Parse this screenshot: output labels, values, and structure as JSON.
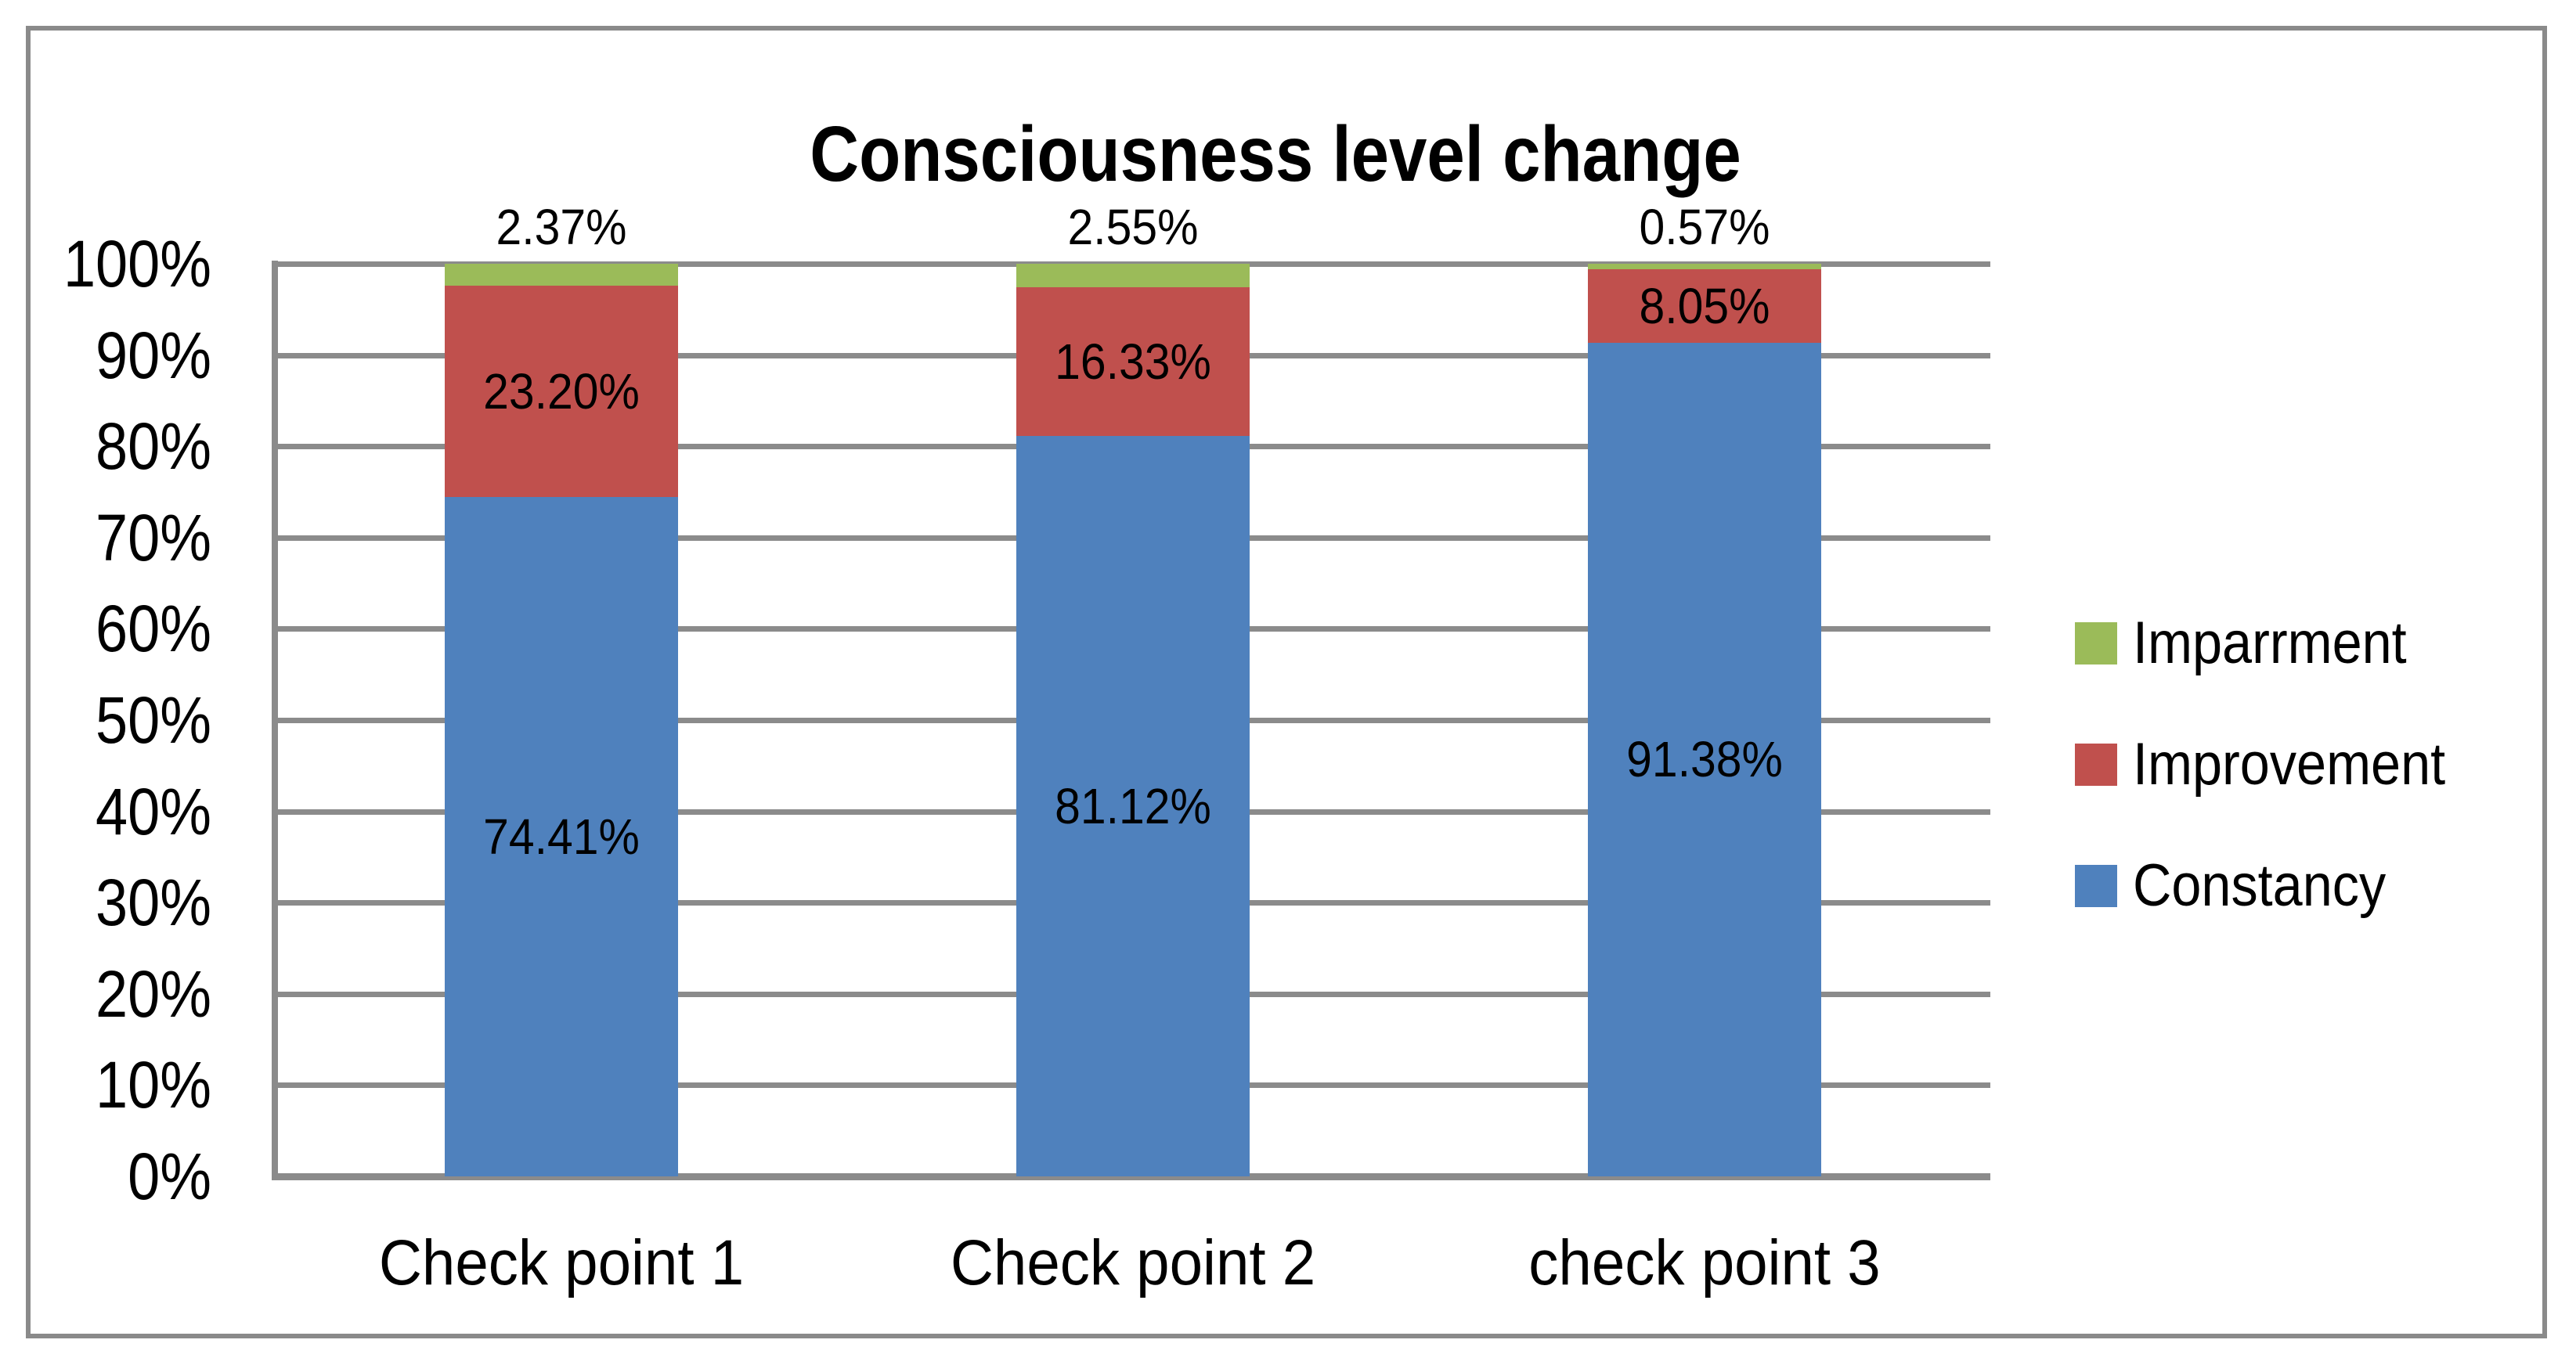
{
  "title": "Consciousness level change",
  "colors": {
    "constancy_blue": "#4F81BD",
    "improvement_red": "#C0504D",
    "imparrment_green": "#9BBB59",
    "gridline_gray": "#8B8B8B",
    "frame_gray": "#8A8A8A",
    "text_black": "#000000"
  },
  "chart_data": {
    "type": "bar",
    "stacked": true,
    "title": "Consciousness level change",
    "categories": [
      "Check point 1",
      "Check point 2",
      "check point 3"
    ],
    "series": [
      {
        "name": "Constancy",
        "color": "#4F81BD",
        "values": [
          74.41,
          81.12,
          91.38
        ],
        "labels": [
          "74.41%",
          "81.12%",
          "91.38%"
        ],
        "label_placement": "inside-center"
      },
      {
        "name": "Improvement",
        "color": "#C0504D",
        "values": [
          23.2,
          16.33,
          8.05
        ],
        "labels": [
          "23.20%",
          "16.33%",
          "8.05%"
        ],
        "label_placement": "inside-center"
      },
      {
        "name": "Imparrment",
        "color": "#9BBB59",
        "values": [
          2.37,
          2.55,
          0.57
        ],
        "labels": [
          "2.37%",
          "2.55%",
          "0.57%"
        ],
        "label_placement": "outside-top"
      }
    ],
    "y_axis": {
      "min": 0,
      "max": 100,
      "step": 10,
      "tick_labels": [
        "0%",
        "10%",
        "20%",
        "30%",
        "40%",
        "50%",
        "60%",
        "70%",
        "80%",
        "90%",
        "100%"
      ]
    },
    "legend": [
      "Imparrment",
      "Improvement",
      "Constancy"
    ],
    "legend_position": "right",
    "grid": true
  }
}
